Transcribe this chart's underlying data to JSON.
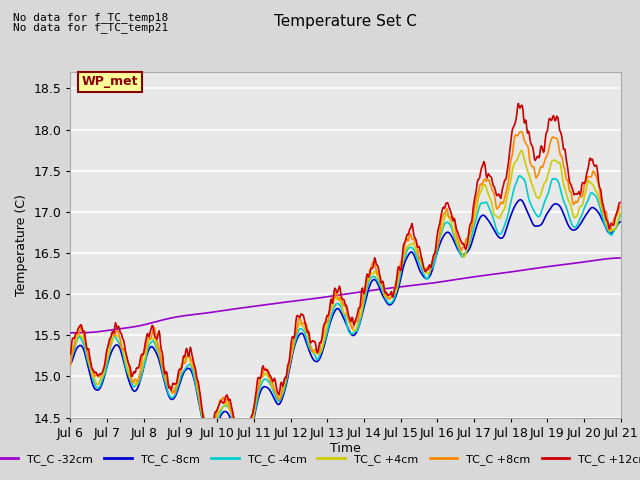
{
  "title": "Temperature Set C",
  "xlabel": "Time",
  "ylabel": "Temperature (C)",
  "ylim": [
    14.5,
    18.7
  ],
  "annotation_lines": [
    "No data for f_TC_temp18",
    "No data for f_TC_temp21"
  ],
  "wp_met_label": "WP_met",
  "legend_entries": [
    "TC_C -32cm",
    "TC_C -8cm",
    "TC_C -4cm",
    "TC_C +4cm",
    "TC_C +8cm",
    "TC_C +12cm"
  ],
  "line_colors": [
    "#9900cc",
    "#0000cc",
    "#00cccc",
    "#cccc00",
    "#ff8800",
    "#cc0000"
  ],
  "fig_facecolor": "#d8d8d8",
  "axes_facecolor": "#e8e8e8",
  "grid_color": "#ffffff",
  "n_points": 720,
  "date_range_days": 15
}
